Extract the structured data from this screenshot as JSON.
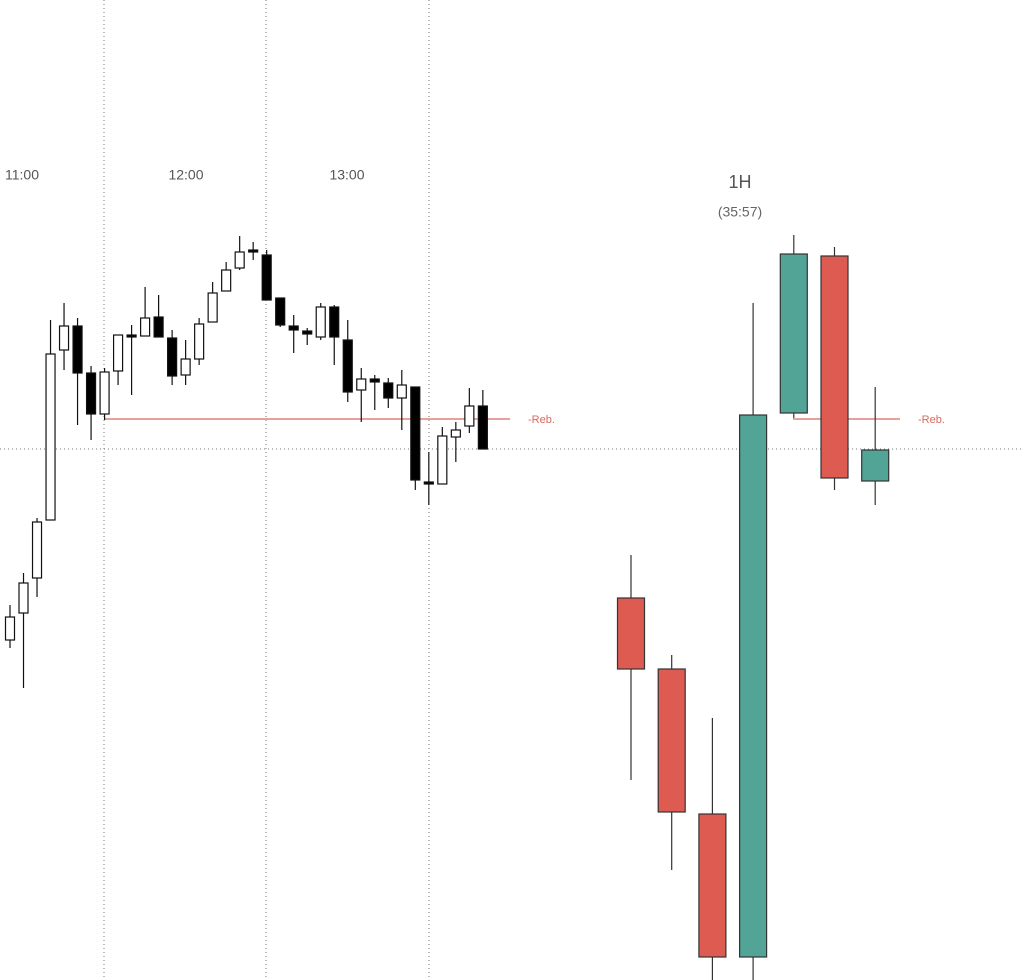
{
  "chart_data": [
    {
      "type": "candlestick",
      "time_labels": [
        "11:00",
        "12:00",
        "13:00"
      ],
      "open": [
        340,
        367,
        402,
        460,
        630,
        654,
        607,
        566,
        609,
        645,
        644,
        663,
        642,
        605,
        621,
        658,
        689,
        712,
        730,
        725,
        682,
        654,
        649,
        643,
        673,
        640,
        590,
        601,
        597,
        582,
        593,
        498,
        496,
        543,
        554,
        574
      ],
      "high": [
        375,
        407,
        462,
        660,
        677,
        662,
        614,
        612,
        645,
        655,
        693,
        685,
        650,
        640,
        662,
        698,
        718,
        744,
        738,
        730,
        682,
        665,
        652,
        677,
        675,
        660,
        612,
        605,
        602,
        610,
        593,
        528,
        553,
        558,
        592,
        590
      ],
      "low": [
        332,
        292,
        383,
        460,
        610,
        555,
        540,
        560,
        595,
        585,
        644,
        643,
        595,
        595,
        615,
        658,
        689,
        710,
        720,
        680,
        653,
        627,
        635,
        640,
        615,
        578,
        558,
        570,
        572,
        550,
        490,
        475,
        496,
        518,
        547,
        531
      ],
      "close": [
        363,
        397,
        458,
        626,
        654,
        607,
        566,
        608,
        645,
        643,
        662,
        643,
        604,
        621,
        656,
        687,
        710,
        728,
        728,
        680,
        655,
        650,
        646,
        673,
        643,
        588,
        601,
        598,
        582,
        595,
        500,
        496,
        544,
        550,
        574,
        531
      ],
      "up_color": "#ffffff",
      "down_color": "#000000",
      "ylim": [
        0,
        980
      ],
      "hline": {
        "value": 561,
        "label": "-Reb.",
        "color": "#d9685e"
      },
      "current_level": 531
    },
    {
      "type": "candlestick",
      "title": "1H",
      "subtitle": "(35:57)",
      "open": [
        382,
        311,
        166,
        23,
        567,
        724,
        499
      ],
      "high": [
        425,
        325,
        262,
        677,
        745,
        733,
        593
      ],
      "low": [
        200,
        110,
        0,
        0,
        562,
        490,
        475
      ],
      "close": [
        311,
        168,
        23,
        565,
        726,
        502,
        530
      ],
      "up_color": "#52a497",
      "down_color": "#de5b52",
      "ylim": [
        0,
        980
      ],
      "hline": {
        "value": 561,
        "label": "-Reb.",
        "color": "#d9685e"
      }
    }
  ]
}
